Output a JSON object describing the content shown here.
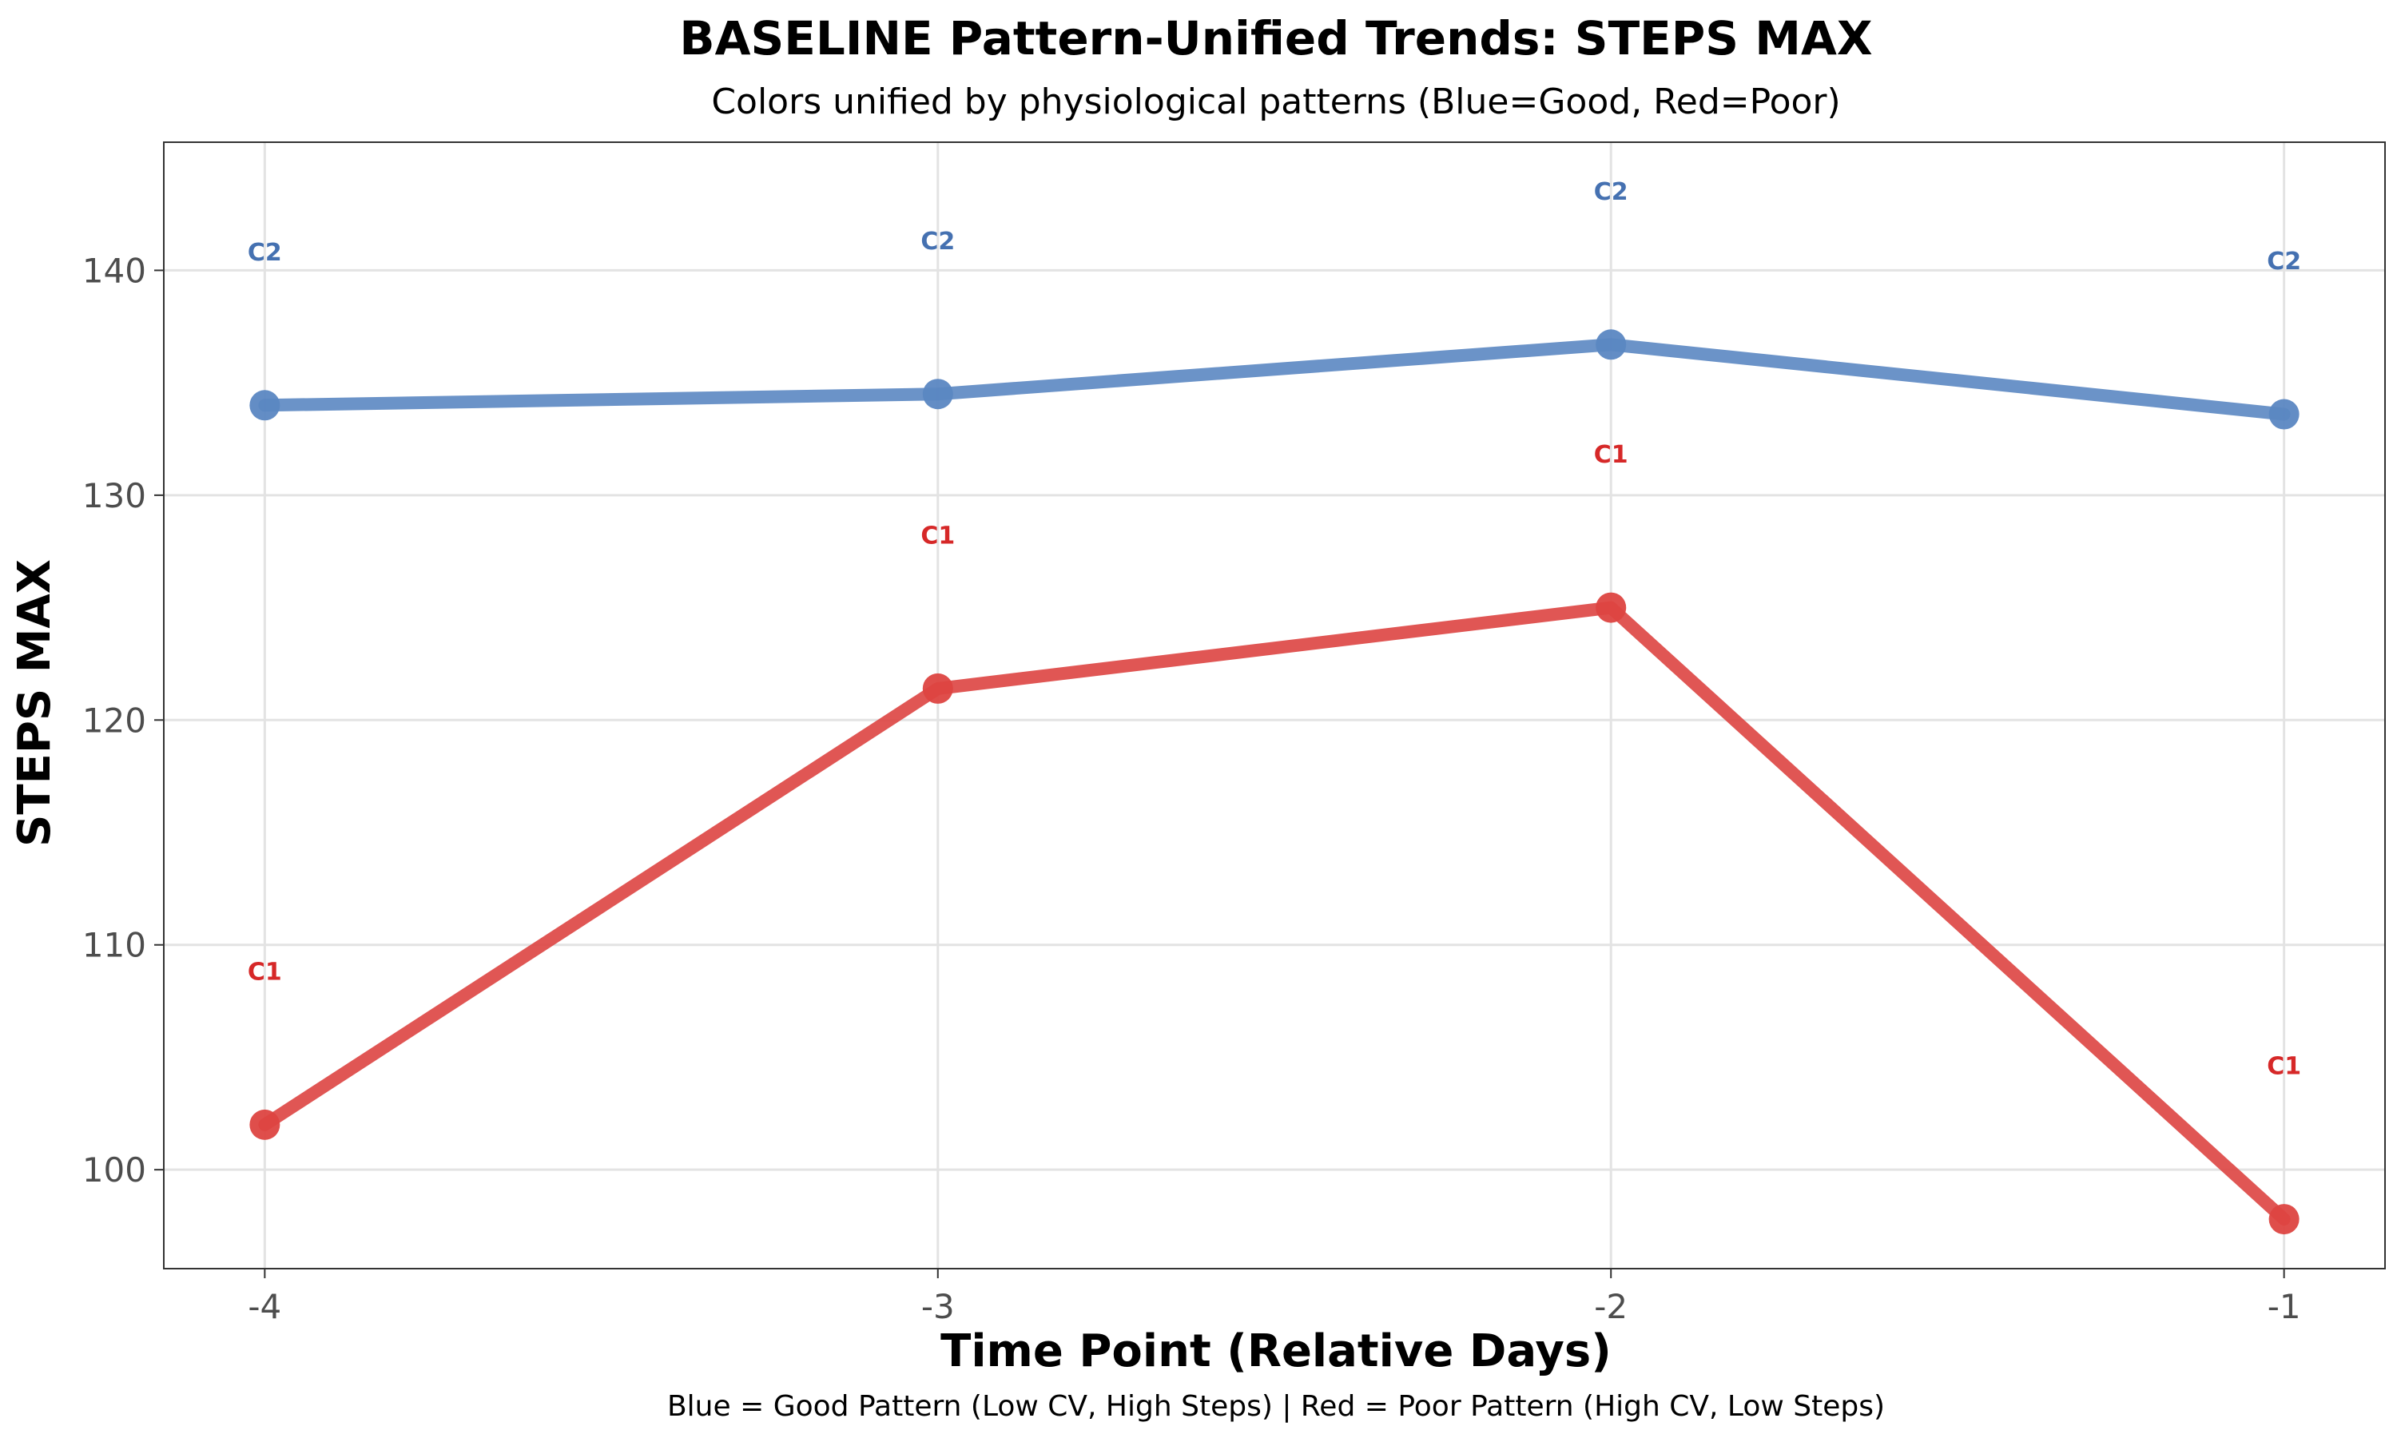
{
  "chart_data": {
    "type": "line",
    "title": "BASELINE Pattern-Unified Trends: STEPS MAX",
    "subtitle": "Colors unified by physiological patterns (Blue=Good, Red=Poor)",
    "xlabel": "Time Point (Relative Days)",
    "ylabel": "STEPS MAX",
    "caption": "Blue = Good Pattern (Low CV, High Steps) | Red = Poor Pattern (High CV, Low Steps)",
    "x": [
      -4,
      -3,
      -2,
      -1
    ],
    "x_tick_labels": [
      "-4",
      "-3",
      "-2",
      "-1"
    ],
    "y_ticks": [
      100,
      110,
      120,
      130,
      140
    ],
    "xlim": [
      -4.15,
      -0.85
    ],
    "ylim": [
      95.6,
      145.7
    ],
    "grid": true,
    "series": [
      {
        "name": "C2",
        "color": "#5b87c2",
        "label_color": "#4571b1",
        "values": [
          134.0,
          134.5,
          136.7,
          133.6
        ],
        "label_y": [
          140.8,
          141.3,
          143.5,
          140.4
        ]
      },
      {
        "name": "C1",
        "color": "#dd4441",
        "label_color": "#d62828",
        "values": [
          102.0,
          121.4,
          125.0,
          97.8
        ],
        "label_y": [
          108.8,
          128.2,
          131.8,
          104.6
        ]
      }
    ]
  }
}
